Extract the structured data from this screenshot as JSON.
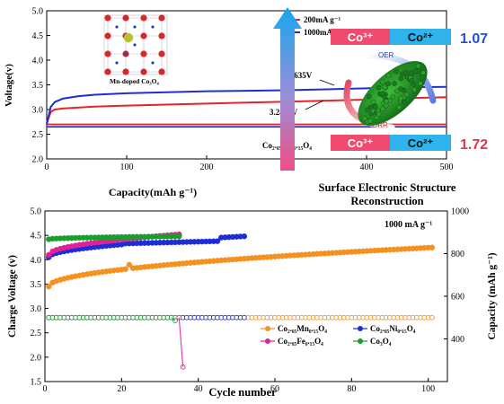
{
  "chart_data": [
    {
      "type": "line",
      "xlabel": "Capacity(mAh g⁻¹)",
      "ylabel": "Voltage(v)",
      "xlim": [
        0,
        500
      ],
      "ylim": [
        2.0,
        5.0
      ],
      "xticks": [
        "0",
        "100",
        "200",
        "300",
        "400",
        "500"
      ],
      "yticks": [
        "2.0",
        "2.5",
        "3.0",
        "3.5",
        "4.0",
        "4.5",
        "5.0"
      ],
      "legend": [
        "200mA g⁻¹",
        "1000mA g⁻¹"
      ],
      "legend_position": "top-right",
      "inset_label": "Mn-doped Co₃O₄",
      "sample_label": "Co₂.₈₅Mn₀.₁₅O₄",
      "annotations": [
        "3.4635V",
        "3.2492V"
      ],
      "series": [
        {
          "name": "200mA g⁻¹",
          "color": "#e8232a",
          "charge": {
            "x": [
              0,
              5,
              10,
              20,
              40,
              60,
              100,
              150,
              200,
              250,
              300,
              350,
              400,
              450,
              500
            ],
            "y": [
              2.72,
              2.95,
              3.0,
              3.02,
              3.04,
              3.06,
              3.08,
              3.1,
              3.12,
              3.14,
              3.16,
              3.18,
              3.2,
              3.23,
              3.25
            ]
          },
          "discharge": {
            "x": [
              0,
              500
            ],
            "y": [
              2.7,
              2.7
            ]
          }
        },
        {
          "name": "1000mA g⁻¹",
          "color": "#1c2fd1",
          "charge": {
            "x": [
              0,
              5,
              10,
              20,
              40,
              60,
              100,
              150,
              200,
              250,
              300,
              350,
              400,
              450,
              500
            ],
            "y": [
              2.7,
              3.05,
              3.15,
              3.22,
              3.27,
              3.3,
              3.33,
              3.35,
              3.37,
              3.38,
              3.39,
              3.41,
              3.43,
              3.45,
              3.46
            ]
          },
          "discharge": {
            "x": [
              0,
              500
            ],
            "y": [
              2.65,
              2.65
            ]
          }
        }
      ]
    },
    {
      "type": "scatter",
      "xlabel": "Cycle number",
      "ylabel": "Charge Voltage (v)",
      "ylabel_right": "Capacity (mAh g⁻¹)",
      "xlim": [
        0,
        105
      ],
      "ylim": [
        1.5,
        5.0
      ],
      "ylim_right": [
        200,
        1000
      ],
      "xticks": [
        "0",
        "20",
        "40",
        "60",
        "80",
        "100"
      ],
      "yticks": [
        "1.5",
        "2.0",
        "2.5",
        "3.0",
        "3.5",
        "4.0",
        "4.5",
        "5.0"
      ],
      "yticks_right": [
        "400",
        "600",
        "800",
        "1000"
      ],
      "rate_label": "1000 mA g⁻¹",
      "legend_position": "lower-right",
      "series": [
        {
          "name": "Co₂.₈₅Mn₀.₁₅O₄",
          "color": "#f5911e",
          "voltage_start": 3.45,
          "voltage_end": 4.25,
          "voltage_points": 101,
          "capacity": 500,
          "capacity_points": 101
        },
        {
          "name": "Co₂.₈₅Ni₀.₁₅O₄",
          "color": "#1d2cd6",
          "voltage_start": 4.05,
          "voltage_end": 4.48,
          "voltage_points": 52,
          "capacity": 500,
          "capacity_points": 52
        },
        {
          "name": "Co₂.₈₅Fe₀.₁₅O₄",
          "color": "#e0229a",
          "voltage_start": 4.1,
          "voltage_end": 4.52,
          "voltage_points": 35,
          "capacity": 500,
          "capacity_points": 36,
          "capacity_final": 1.8
        },
        {
          "name": "Co₃O₄",
          "color": "#16a02a",
          "voltage_start": 4.42,
          "voltage_end": 4.48,
          "voltage_points": 35,
          "capacity": 500,
          "capacity_points": 34,
          "capacity_final": 2.75
        }
      ]
    }
  ],
  "scheme": {
    "title_line1": "Surface Electronic Structure",
    "title_line2": "Reconstruction",
    "top_left": "Co³⁺",
    "top_right": "Co²⁺",
    "top_value": "1.07",
    "bottom_left": "Co³⁺",
    "bottom_right": "Co²⁺",
    "bottom_value": "1.72",
    "oer": "OER",
    "orr": "ORR",
    "colors": {
      "pink": "#ef4b6e",
      "blue": "#2fb3ec",
      "value_top": "#1e52d6",
      "value_bottom": "#e5334b"
    }
  }
}
